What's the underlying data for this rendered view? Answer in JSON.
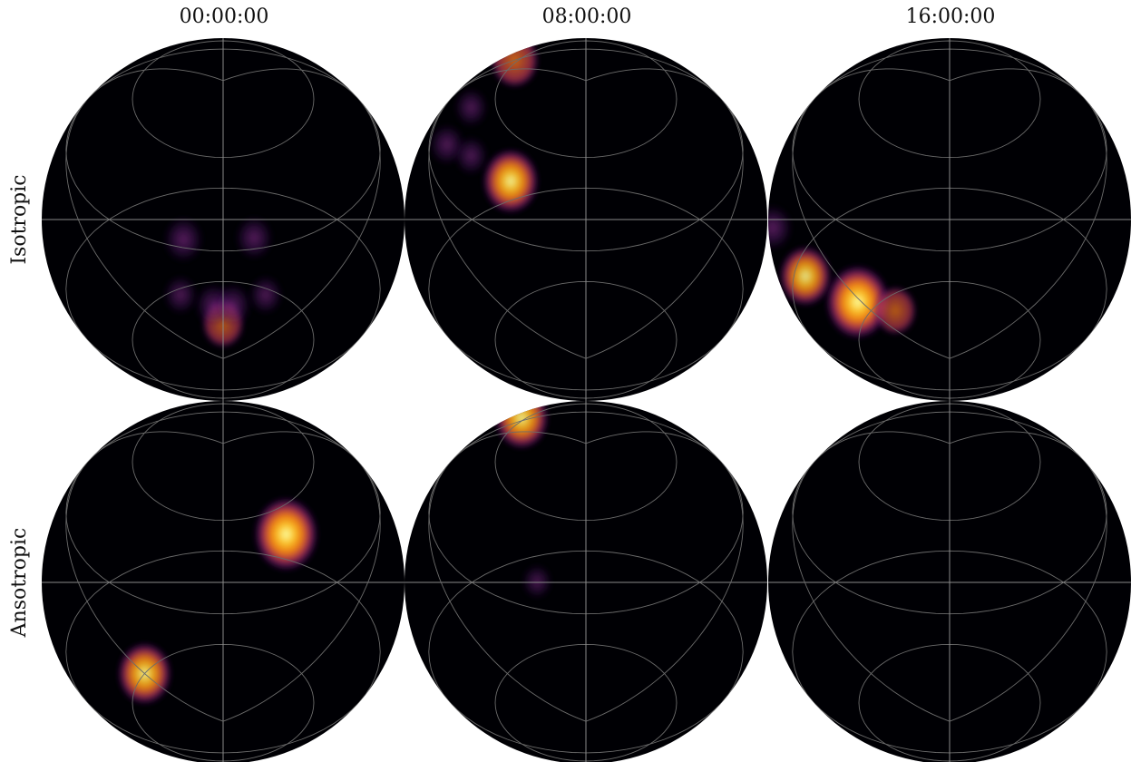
{
  "chart_data": {
    "type": "heatmap",
    "projection": "orthographic",
    "colormap": "inferno",
    "background": "#000000",
    "grid": true,
    "columns": [
      "00:00:00",
      "08:00:00",
      "16:00:00"
    ],
    "rows": [
      "Isotropic",
      "Ansotropic"
    ],
    "panels": [
      {
        "row": 0,
        "col": 0,
        "time": "00:00:00",
        "model": "Isotropic",
        "blobs": [
          {
            "lon": -18,
            "lat": -45,
            "peak": 0.4
          },
          {
            "lon": 14,
            "lat": -45,
            "peak": 0.35
          },
          {
            "lon": 0,
            "lat": -75,
            "peak": 0.45
          },
          {
            "lon": -8,
            "lat": -68,
            "peak": 0.35
          },
          {
            "lon": 8,
            "lat": -68,
            "peak": 0.35
          },
          {
            "lon": -30,
            "lat": -62,
            "peak": 0.25
          },
          {
            "lon": 30,
            "lat": -62,
            "peak": 0.25
          }
        ]
      },
      {
        "row": 0,
        "col": 1,
        "time": "08:00:00",
        "model": "Isotropic",
        "blobs": [
          {
            "lon": -27,
            "lat": 30,
            "peak": 0.6
          },
          {
            "lon": -27,
            "lat": -24,
            "peak": 0.8
          },
          {
            "lon": -50,
            "lat": 0,
            "peak": 0.3
          },
          {
            "lon": -40,
            "lat": 10,
            "peak": 0.25
          },
          {
            "lon": -40,
            "lat": -10,
            "peak": 0.25
          }
        ]
      },
      {
        "row": 0,
        "col": 2,
        "time": "16:00:00",
        "model": "Isotropic",
        "blobs": [
          {
            "lon": -62,
            "lat": -55,
            "peak": 1.0
          },
          {
            "lon": -76,
            "lat": -35,
            "peak": 0.7
          },
          {
            "lon": -82,
            "lat": -10,
            "peak": 0.4
          },
          {
            "lon": -65,
            "lat": 55,
            "peak": 0.3
          },
          {
            "lon": -45,
            "lat": -65,
            "peak": 0.45
          }
        ]
      },
      {
        "row": 1,
        "col": 0,
        "time": "00:00:00",
        "model": "Ansotropic",
        "blobs": [
          {
            "lon": 22,
            "lat": -22,
            "peak": 1.0
          },
          {
            "lon": -60,
            "lat": -60,
            "peak": 0.75
          }
        ]
      },
      {
        "row": 1,
        "col": 1,
        "time": "08:00:00",
        "model": "Ansotropic",
        "blobs": [
          {
            "lon": -25,
            "lat": 33,
            "peak": 0.75
          },
          {
            "lon": -20,
            "lat": -38,
            "peak": 0.15
          }
        ]
      },
      {
        "row": 1,
        "col": 2,
        "time": "16:00:00",
        "model": "Ansotropic",
        "blobs": []
      }
    ]
  }
}
